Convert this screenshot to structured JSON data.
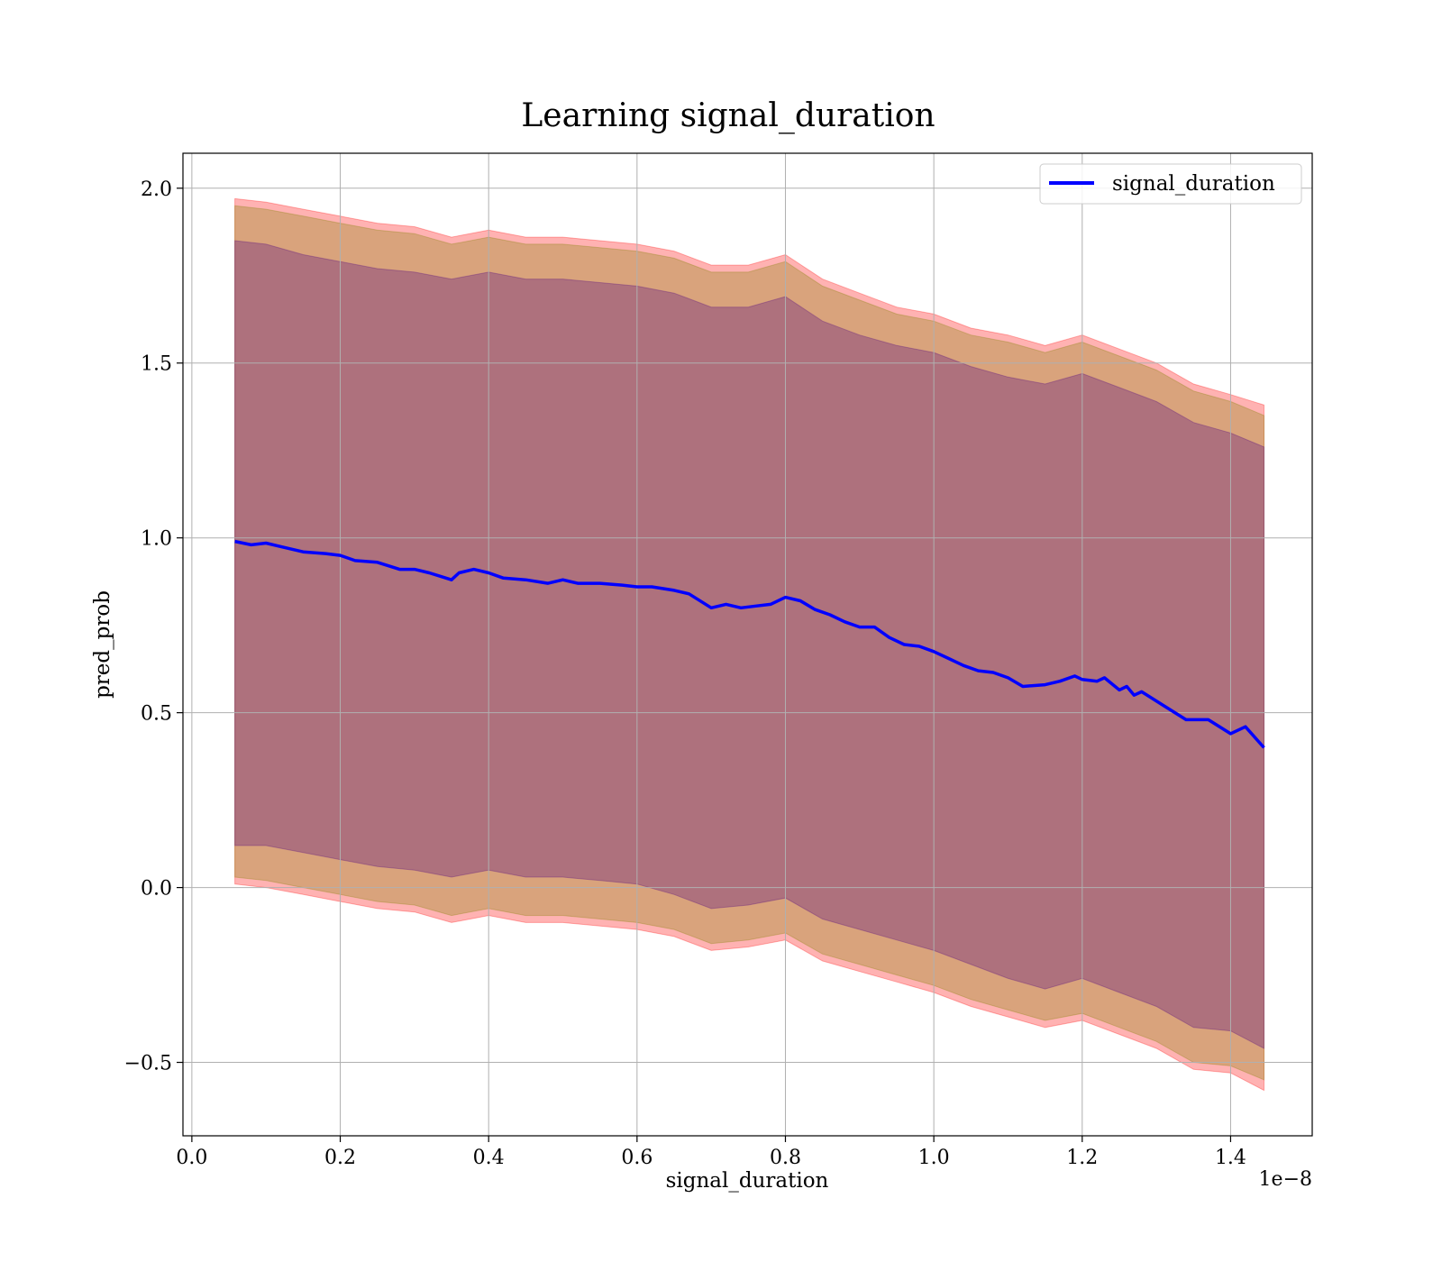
{
  "chart_data": {
    "type": "line",
    "title": "Learning signal_duration",
    "xlabel": "signal_duration",
    "ylabel": "pred_prob",
    "x_offset_text": "1e−8",
    "xlim": [
      -0.012,
      1.51
    ],
    "ylim": [
      -0.71,
      2.1
    ],
    "grid": true,
    "legend_placement": "top-right",
    "x_ticks": [
      0.0,
      0.2,
      0.4,
      0.6,
      0.8,
      1.0,
      1.2,
      1.4
    ],
    "x_tick_labels": [
      "0.0",
      "0.2",
      "0.4",
      "0.6",
      "0.8",
      "1.0",
      "1.2",
      "1.4"
    ],
    "y_ticks": [
      2.0,
      1.5,
      1.0,
      0.5,
      0.0,
      -0.5
    ],
    "y_tick_labels": [
      "2.0",
      "1.5",
      "1.0",
      "0.5",
      "0.0",
      "−0.5"
    ],
    "colors": {
      "line": "#0000ff",
      "outer_band": "#ff0000",
      "middle_band": "#808000",
      "inner_band": "#4b0082"
    },
    "series": [
      {
        "name": "signal_duration",
        "x": [
          0.058,
          0.08,
          0.1,
          0.12,
          0.15,
          0.18,
          0.2,
          0.22,
          0.25,
          0.28,
          0.3,
          0.32,
          0.35,
          0.36,
          0.38,
          0.4,
          0.42,
          0.45,
          0.48,
          0.5,
          0.52,
          0.55,
          0.58,
          0.6,
          0.62,
          0.65,
          0.67,
          0.7,
          0.72,
          0.74,
          0.76,
          0.78,
          0.8,
          0.82,
          0.84,
          0.86,
          0.88,
          0.9,
          0.92,
          0.94,
          0.96,
          0.98,
          1.0,
          1.02,
          1.04,
          1.06,
          1.08,
          1.1,
          1.12,
          1.15,
          1.17,
          1.19,
          1.2,
          1.22,
          1.23,
          1.25,
          1.26,
          1.27,
          1.28,
          1.31,
          1.34,
          1.37,
          1.4,
          1.42,
          1.445
        ],
        "y": [
          0.99,
          0.98,
          0.985,
          0.975,
          0.96,
          0.955,
          0.95,
          0.935,
          0.93,
          0.91,
          0.91,
          0.9,
          0.88,
          0.9,
          0.91,
          0.9,
          0.885,
          0.88,
          0.87,
          0.88,
          0.87,
          0.87,
          0.865,
          0.86,
          0.86,
          0.85,
          0.84,
          0.8,
          0.81,
          0.8,
          0.805,
          0.81,
          0.83,
          0.82,
          0.795,
          0.78,
          0.76,
          0.745,
          0.745,
          0.715,
          0.695,
          0.69,
          0.675,
          0.655,
          0.635,
          0.62,
          0.615,
          0.6,
          0.575,
          0.58,
          0.59,
          0.605,
          0.595,
          0.59,
          0.6,
          0.565,
          0.575,
          0.55,
          0.56,
          0.52,
          0.48,
          0.48,
          0.44,
          0.46,
          0.4
        ]
      }
    ],
    "bands": [
      {
        "color": "#ff0000",
        "x": [
          0.058,
          0.1,
          0.15,
          0.2,
          0.25,
          0.3,
          0.35,
          0.4,
          0.45,
          0.5,
          0.55,
          0.6,
          0.65,
          0.7,
          0.75,
          0.8,
          0.85,
          0.9,
          0.95,
          1.0,
          1.05,
          1.1,
          1.15,
          1.2,
          1.25,
          1.3,
          1.35,
          1.4,
          1.445
        ],
        "upper": [
          1.97,
          1.96,
          1.94,
          1.92,
          1.9,
          1.89,
          1.86,
          1.88,
          1.86,
          1.86,
          1.85,
          1.84,
          1.82,
          1.78,
          1.78,
          1.81,
          1.74,
          1.7,
          1.66,
          1.64,
          1.6,
          1.58,
          1.55,
          1.58,
          1.54,
          1.5,
          1.44,
          1.41,
          1.38
        ],
        "lower": [
          0.01,
          0.0,
          -0.02,
          -0.04,
          -0.06,
          -0.07,
          -0.1,
          -0.08,
          -0.1,
          -0.1,
          -0.11,
          -0.12,
          -0.14,
          -0.18,
          -0.17,
          -0.15,
          -0.21,
          -0.24,
          -0.27,
          -0.3,
          -0.34,
          -0.37,
          -0.4,
          -0.38,
          -0.42,
          -0.46,
          -0.52,
          -0.53,
          -0.58
        ]
      },
      {
        "color": "#808000",
        "x": [
          0.058,
          0.1,
          0.15,
          0.2,
          0.25,
          0.3,
          0.35,
          0.4,
          0.45,
          0.5,
          0.55,
          0.6,
          0.65,
          0.7,
          0.75,
          0.8,
          0.85,
          0.9,
          0.95,
          1.0,
          1.05,
          1.1,
          1.15,
          1.2,
          1.25,
          1.3,
          1.35,
          1.4,
          1.445
        ],
        "upper": [
          1.95,
          1.94,
          1.92,
          1.9,
          1.88,
          1.87,
          1.84,
          1.86,
          1.84,
          1.84,
          1.83,
          1.82,
          1.8,
          1.76,
          1.76,
          1.79,
          1.72,
          1.68,
          1.64,
          1.62,
          1.58,
          1.56,
          1.53,
          1.56,
          1.52,
          1.48,
          1.42,
          1.39,
          1.35
        ],
        "lower": [
          0.03,
          0.02,
          0.0,
          -0.02,
          -0.04,
          -0.05,
          -0.08,
          -0.06,
          -0.08,
          -0.08,
          -0.09,
          -0.1,
          -0.12,
          -0.16,
          -0.15,
          -0.13,
          -0.19,
          -0.22,
          -0.25,
          -0.28,
          -0.32,
          -0.35,
          -0.38,
          -0.36,
          -0.4,
          -0.44,
          -0.5,
          -0.51,
          -0.55
        ]
      },
      {
        "color": "#4b0082",
        "x": [
          0.058,
          0.1,
          0.15,
          0.2,
          0.25,
          0.3,
          0.35,
          0.4,
          0.45,
          0.5,
          0.55,
          0.6,
          0.65,
          0.7,
          0.75,
          0.8,
          0.85,
          0.9,
          0.95,
          1.0,
          1.05,
          1.1,
          1.15,
          1.2,
          1.25,
          1.3,
          1.35,
          1.4,
          1.445
        ],
        "upper": [
          1.85,
          1.84,
          1.81,
          1.79,
          1.77,
          1.76,
          1.74,
          1.76,
          1.74,
          1.74,
          1.73,
          1.72,
          1.7,
          1.66,
          1.66,
          1.69,
          1.62,
          1.58,
          1.55,
          1.53,
          1.49,
          1.46,
          1.44,
          1.47,
          1.43,
          1.39,
          1.33,
          1.3,
          1.26
        ],
        "lower": [
          0.12,
          0.12,
          0.1,
          0.08,
          0.06,
          0.05,
          0.03,
          0.05,
          0.03,
          0.03,
          0.02,
          0.01,
          -0.02,
          -0.06,
          -0.05,
          -0.03,
          -0.09,
          -0.12,
          -0.15,
          -0.18,
          -0.22,
          -0.26,
          -0.29,
          -0.26,
          -0.3,
          -0.34,
          -0.4,
          -0.41,
          -0.46
        ]
      }
    ]
  }
}
